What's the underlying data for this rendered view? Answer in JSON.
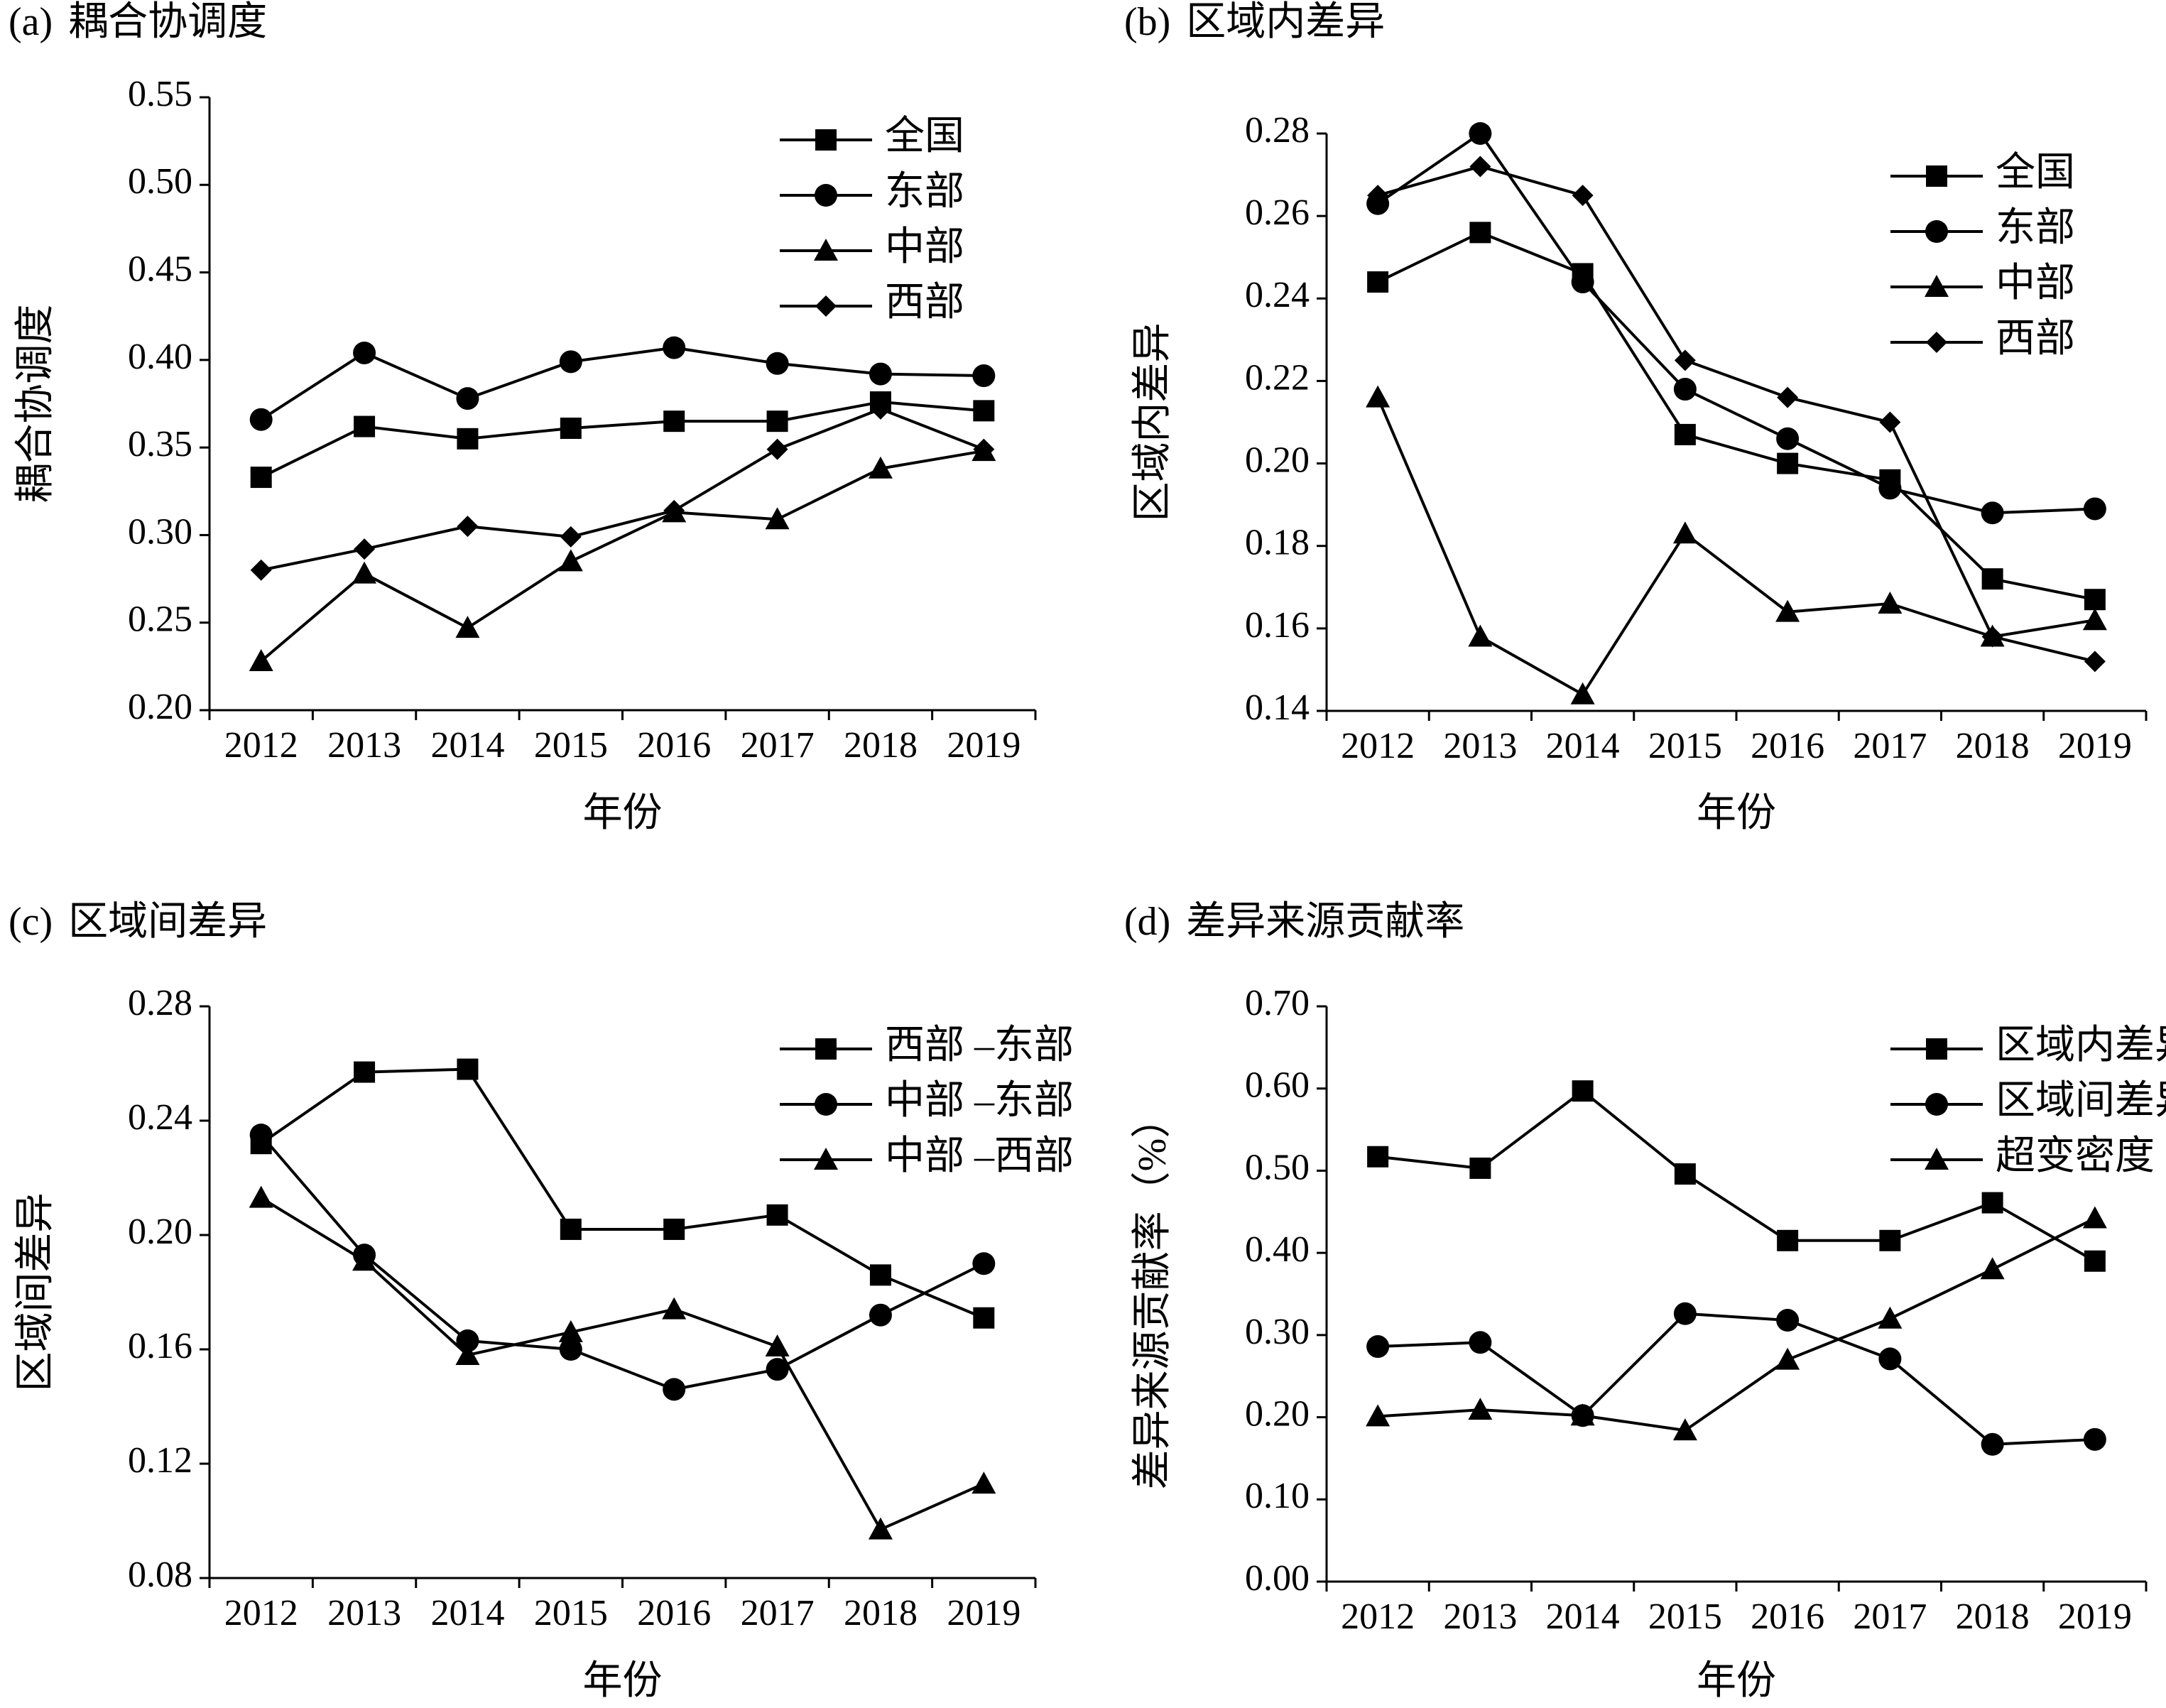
{
  "colors": {
    "ink": "#000000",
    "background": "#ffffff"
  },
  "x_categories": [
    "2012",
    "2013",
    "2014",
    "2015",
    "2016",
    "2017",
    "2018",
    "2019"
  ],
  "chart_data": [
    {
      "type": "line",
      "panel_label": "(a)",
      "title": "耦合协调度",
      "xlabel": "年份",
      "ylabel": "耦合协调度",
      "ylim": [
        0.2,
        0.55
      ],
      "yticks": [
        "0.20",
        "0.25",
        "0.30",
        "0.35",
        "0.40",
        "0.45",
        "0.50",
        "0.55"
      ],
      "categories": [
        "2012",
        "2013",
        "2014",
        "2015",
        "2016",
        "2017",
        "2018",
        "2019"
      ],
      "legend_position": "top-right",
      "series": [
        {
          "name": "全国",
          "marker": "square",
          "values": [
            0.333,
            0.362,
            0.355,
            0.361,
            0.365,
            0.365,
            0.376,
            0.371
          ]
        },
        {
          "name": "东部",
          "marker": "circle",
          "values": [
            0.366,
            0.404,
            0.378,
            0.399,
            0.407,
            0.398,
            0.392,
            0.391
          ]
        },
        {
          "name": "中部",
          "marker": "triangle",
          "values": [
            0.228,
            0.278,
            0.247,
            0.285,
            0.313,
            0.309,
            0.338,
            0.348
          ]
        },
        {
          "name": "西部",
          "marker": "diamond",
          "values": [
            0.28,
            0.292,
            0.305,
            0.299,
            0.314,
            0.349,
            0.372,
            0.349
          ]
        }
      ]
    },
    {
      "type": "line",
      "panel_label": "(b)",
      "title": "区域内差异",
      "xlabel": "年份",
      "ylabel": "区域内差异",
      "ylim": [
        0.14,
        0.28
      ],
      "yticks": [
        "0.14",
        "0.16",
        "0.18",
        "0.20",
        "0.22",
        "0.24",
        "0.26",
        "0.28"
      ],
      "categories": [
        "2012",
        "2013",
        "2014",
        "2015",
        "2016",
        "2017",
        "2018",
        "2019"
      ],
      "legend_position": "top-right",
      "series": [
        {
          "name": "全国",
          "marker": "square",
          "values": [
            0.244,
            0.256,
            0.246,
            0.207,
            0.2,
            0.196,
            0.172,
            0.167
          ]
        },
        {
          "name": "东部",
          "marker": "circle",
          "values": [
            0.263,
            0.28,
            0.244,
            0.218,
            0.206,
            0.194,
            0.188,
            0.189
          ]
        },
        {
          "name": "中部",
          "marker": "triangle",
          "values": [
            0.216,
            0.158,
            0.144,
            0.183,
            0.164,
            0.166,
            0.158,
            0.162
          ]
        },
        {
          "name": "西部",
          "marker": "diamond",
          "values": [
            0.265,
            0.272,
            0.265,
            0.225,
            0.216,
            0.21,
            0.158,
            0.152
          ]
        }
      ]
    },
    {
      "type": "line",
      "panel_label": "(c)",
      "title": "区域间差异",
      "xlabel": "年份",
      "ylabel": "区域间差异",
      "ylim": [
        0.08,
        0.28
      ],
      "yticks": [
        "0.08",
        "0.12",
        "0.16",
        "0.20",
        "0.24",
        "0.28"
      ],
      "categories": [
        "2012",
        "2013",
        "2014",
        "2015",
        "2016",
        "2017",
        "2018",
        "2019"
      ],
      "legend_position": "top-right",
      "series": [
        {
          "name": "西部 –东部",
          "marker": "square",
          "values": [
            0.232,
            0.257,
            0.258,
            0.202,
            0.202,
            0.207,
            0.186,
            0.171
          ]
        },
        {
          "name": "中部 –东部",
          "marker": "circle",
          "values": [
            0.235,
            0.193,
            0.163,
            0.16,
            0.146,
            0.153,
            0.172,
            0.19
          ]
        },
        {
          "name": "中部 –西部",
          "marker": "triangle",
          "values": [
            0.213,
            0.191,
            0.158,
            0.166,
            0.174,
            0.161,
            0.097,
            0.113
          ]
        }
      ]
    },
    {
      "type": "line",
      "panel_label": "(d)",
      "title": "差异来源贡献率",
      "xlabel": "年份",
      "ylabel": "差异来源贡献率（%）",
      "ylim": [
        0.0,
        0.7
      ],
      "yticks": [
        "0.00",
        "0.10",
        "0.20",
        "0.30",
        "0.40",
        "0.50",
        "0.60",
        "0.70"
      ],
      "categories": [
        "2012",
        "2013",
        "2014",
        "2015",
        "2016",
        "2017",
        "2018",
        "2019"
      ],
      "legend_position": "top-right",
      "series": [
        {
          "name": "区域内差异",
          "marker": "square",
          "values": [
            0.517,
            0.503,
            0.597,
            0.496,
            0.415,
            0.415,
            0.461,
            0.39
          ]
        },
        {
          "name": "区域间差异",
          "marker": "circle",
          "values": [
            0.286,
            0.291,
            0.202,
            0.326,
            0.318,
            0.271,
            0.167,
            0.173
          ]
        },
        {
          "name": "超变密度",
          "marker": "triangle",
          "values": [
            0.201,
            0.209,
            0.202,
            0.184,
            0.27,
            0.32,
            0.38,
            0.442
          ]
        }
      ]
    }
  ]
}
